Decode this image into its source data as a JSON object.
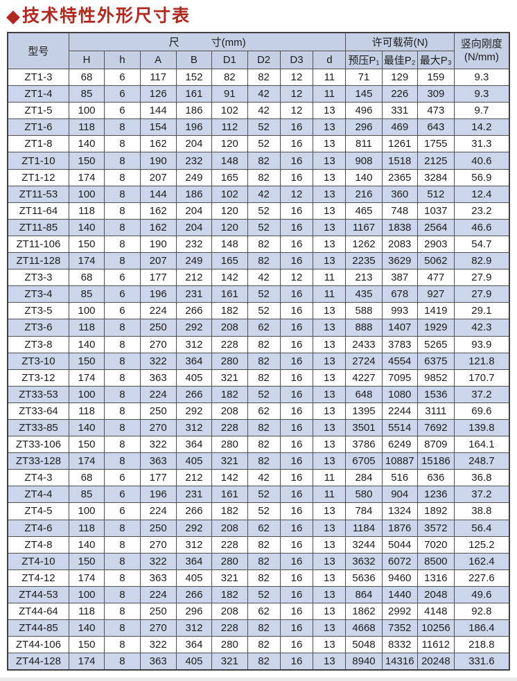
{
  "page": {
    "bullet": "◆",
    "title": "技术特性外形尺寸表"
  },
  "colors": {
    "title_red": "#b2281e",
    "header_bg": "#c5d0e4",
    "alt_row_bg": "#cbd6ea",
    "border": "#4f4f4f"
  },
  "table": {
    "header": {
      "model": "型号",
      "dim_group_left": "尺",
      "dim_group_right": "寸(mm)",
      "load_group": "许可载荷(N)",
      "stiffness_line1": "竖向刚度",
      "stiffness_line2": "(N/mm)",
      "dim_cols": [
        "H",
        "h",
        "A",
        "B",
        "D1",
        "D2",
        "D3",
        "d"
      ],
      "load_cols": [
        "预压P₁",
        "最佳P₂",
        "最大P₃"
      ]
    },
    "rows": [
      {
        "model": "ZT1-3",
        "values": [
          "68",
          "6",
          "117",
          "152",
          "82",
          "82",
          "12",
          "11",
          "71",
          "129",
          "159",
          "9.3"
        ]
      },
      {
        "model": "ZT1-4",
        "values": [
          "85",
          "6",
          "126",
          "161",
          "91",
          "42",
          "12",
          "11",
          "145",
          "226",
          "309",
          "9.3"
        ]
      },
      {
        "model": "ZT1-5",
        "values": [
          "100",
          "6",
          "144",
          "186",
          "102",
          "42",
          "12",
          "13",
          "496",
          "331",
          "473",
          "9.7"
        ]
      },
      {
        "model": "ZT1-6",
        "values": [
          "118",
          "8",
          "154",
          "196",
          "112",
          "52",
          "16",
          "13",
          "296",
          "469",
          "643",
          "14.2"
        ]
      },
      {
        "model": "ZT1-8",
        "values": [
          "140",
          "8",
          "162",
          "204",
          "120",
          "52",
          "16",
          "13",
          "811",
          "1261",
          "1755",
          "31.3"
        ]
      },
      {
        "model": "ZT1-10",
        "values": [
          "150",
          "8",
          "190",
          "232",
          "148",
          "82",
          "16",
          "13",
          "908",
          "1518",
          "2125",
          "40.6"
        ]
      },
      {
        "model": "ZT1-12",
        "values": [
          "174",
          "8",
          "207",
          "249",
          "165",
          "82",
          "16",
          "13",
          "140",
          "2365",
          "3284",
          "56.9"
        ]
      },
      {
        "model": "ZT11-53",
        "values": [
          "100",
          "8",
          "144",
          "186",
          "102",
          "42",
          "12",
          "13",
          "216",
          "360",
          "512",
          "12.4"
        ]
      },
      {
        "model": "ZT11-64",
        "values": [
          "118",
          "8",
          "162",
          "204",
          "120",
          "52",
          "16",
          "13",
          "465",
          "748",
          "1037",
          "23.2"
        ]
      },
      {
        "model": "ZT11-85",
        "values": [
          "140",
          "8",
          "162",
          "204",
          "120",
          "52",
          "16",
          "13",
          "1167",
          "1838",
          "2564",
          "46.6"
        ]
      },
      {
        "model": "ZT11-106",
        "values": [
          "150",
          "8",
          "190",
          "232",
          "148",
          "82",
          "16",
          "13",
          "1262",
          "2083",
          "2903",
          "54.7"
        ]
      },
      {
        "model": "ZT11-128",
        "values": [
          "174",
          "8",
          "207",
          "249",
          "165",
          "82",
          "16",
          "13",
          "2235",
          "3629",
          "5062",
          "82.9"
        ]
      },
      {
        "model": "ZT3-3",
        "values": [
          "68",
          "6",
          "177",
          "212",
          "142",
          "42",
          "12",
          "11",
          "213",
          "387",
          "477",
          "27.9"
        ]
      },
      {
        "model": "ZT3-4",
        "values": [
          "85",
          "6",
          "196",
          "231",
          "161",
          "52",
          "16",
          "11",
          "435",
          "678",
          "927",
          "27.9"
        ]
      },
      {
        "model": "ZT3-5",
        "values": [
          "100",
          "6",
          "224",
          "266",
          "182",
          "52",
          "16",
          "13",
          "588",
          "993",
          "1419",
          "29.1"
        ]
      },
      {
        "model": "ZT3-6",
        "values": [
          "118",
          "8",
          "250",
          "292",
          "208",
          "62",
          "16",
          "13",
          "888",
          "1407",
          "1929",
          "42.3"
        ]
      },
      {
        "model": "ZT3-8",
        "values": [
          "140",
          "8",
          "270",
          "312",
          "228",
          "82",
          "16",
          "13",
          "2433",
          "3783",
          "5265",
          "93.9"
        ]
      },
      {
        "model": "ZT3-10",
        "values": [
          "150",
          "8",
          "322",
          "364",
          "280",
          "82",
          "16",
          "13",
          "2724",
          "4554",
          "6375",
          "121.8"
        ]
      },
      {
        "model": "ZT3-12",
        "values": [
          "174",
          "8",
          "363",
          "405",
          "321",
          "82",
          "16",
          "13",
          "4227",
          "7095",
          "9852",
          "170.7"
        ]
      },
      {
        "model": "ZT33-53",
        "values": [
          "100",
          "8",
          "224",
          "266",
          "182",
          "52",
          "16",
          "13",
          "648",
          "1080",
          "1536",
          "37.2"
        ]
      },
      {
        "model": "ZT33-64",
        "values": [
          "118",
          "8",
          "250",
          "292",
          "208",
          "62",
          "16",
          "13",
          "1395",
          "2244",
          "3111",
          "69.6"
        ]
      },
      {
        "model": "ZT33-85",
        "values": [
          "140",
          "8",
          "270",
          "312",
          "228",
          "82",
          "16",
          "13",
          "3501",
          "5514",
          "7692",
          "139.8"
        ]
      },
      {
        "model": "ZT33-106",
        "values": [
          "150",
          "8",
          "322",
          "364",
          "280",
          "82",
          "16",
          "13",
          "3786",
          "6249",
          "8709",
          "164.1"
        ]
      },
      {
        "model": "ZT33-128",
        "values": [
          "174",
          "8",
          "363",
          "405",
          "321",
          "82",
          "16",
          "13",
          "6705",
          "10887",
          "15186",
          "248.7"
        ]
      },
      {
        "model": "ZT4-3",
        "values": [
          "68",
          "6",
          "177",
          "212",
          "142",
          "42",
          "16",
          "11",
          "284",
          "516",
          "636",
          "36.8"
        ]
      },
      {
        "model": "ZT4-4",
        "values": [
          "85",
          "6",
          "196",
          "231",
          "161",
          "52",
          "16",
          "11",
          "580",
          "904",
          "1236",
          "37.2"
        ]
      },
      {
        "model": "ZT4-5",
        "values": [
          "100",
          "6",
          "224",
          "266",
          "182",
          "52",
          "16",
          "13",
          "784",
          "1324",
          "1892",
          "38.8"
        ]
      },
      {
        "model": "ZT4-6",
        "values": [
          "118",
          "8",
          "250",
          "292",
          "208",
          "62",
          "16",
          "13",
          "1184",
          "1876",
          "3572",
          "56.4"
        ]
      },
      {
        "model": "ZT4-8",
        "values": [
          "140",
          "8",
          "270",
          "312",
          "228",
          "82",
          "16",
          "13",
          "3244",
          "5044",
          "7020",
          "125.2"
        ]
      },
      {
        "model": "ZT4-10",
        "values": [
          "150",
          "8",
          "322",
          "364",
          "280",
          "82",
          "16",
          "13",
          "3632",
          "6072",
          "8500",
          "162.4"
        ]
      },
      {
        "model": "ZT4-12",
        "values": [
          "174",
          "8",
          "363",
          "405",
          "321",
          "82",
          "16",
          "13",
          "5636",
          "9460",
          "1316",
          "227.6"
        ]
      },
      {
        "model": "ZT44-53",
        "values": [
          "100",
          "8",
          "224",
          "266",
          "182",
          "52",
          "16",
          "13",
          "864",
          "1440",
          "2048",
          "49.6"
        ]
      },
      {
        "model": "ZT44-64",
        "values": [
          "118",
          "8",
          "250",
          "296",
          "208",
          "62",
          "16",
          "13",
          "1862",
          "2992",
          "4148",
          "92.8"
        ]
      },
      {
        "model": "ZT44-85",
        "values": [
          "140",
          "8",
          "270",
          "312",
          "228",
          "82",
          "16",
          "13",
          "4668",
          "7352",
          "10256",
          "186.4"
        ]
      },
      {
        "model": "ZT44-106",
        "values": [
          "150",
          "8",
          "322",
          "364",
          "280",
          "82",
          "16",
          "13",
          "5048",
          "8332",
          "11612",
          "218.8"
        ]
      },
      {
        "model": "ZT44-128",
        "values": [
          "174",
          "8",
          "363",
          "405",
          "321",
          "82",
          "16",
          "13",
          "8940",
          "14316",
          "20248",
          "331.6"
        ]
      }
    ]
  }
}
